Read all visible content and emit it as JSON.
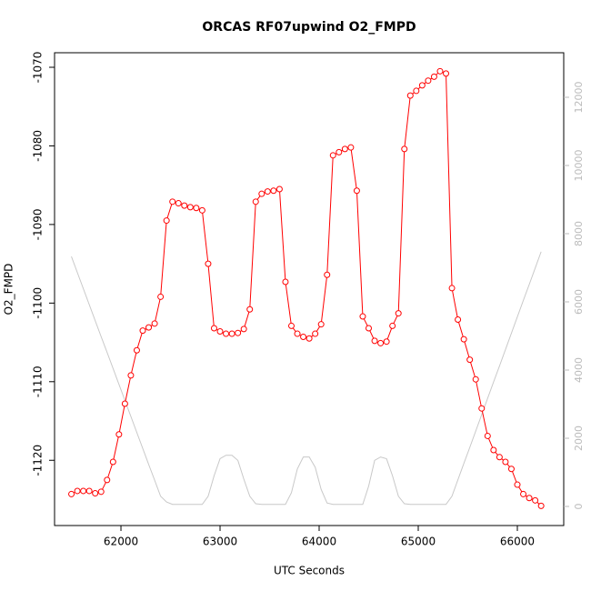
{
  "chart_data": {
    "type": "line",
    "title": "ORCAS RF07upwind O2_FMPD",
    "xlabel": "UTC Seconds",
    "ylabel": "O2_FMPD",
    "x": [
      61500,
      61560,
      61620,
      61680,
      61740,
      61800,
      61860,
      61920,
      61980,
      62040,
      62100,
      62160,
      62220,
      62280,
      62340,
      62400,
      62460,
      62520,
      62580,
      62640,
      62700,
      62760,
      62820,
      62880,
      62940,
      63000,
      63060,
      63120,
      63180,
      63240,
      63300,
      63360,
      63420,
      63480,
      63540,
      63600,
      63660,
      63720,
      63780,
      63840,
      63900,
      63960,
      64020,
      64080,
      64140,
      64200,
      64260,
      64320,
      64380,
      64440,
      64500,
      64560,
      64620,
      64680,
      64740,
      64800,
      64860,
      64920,
      64980,
      65040,
      65100,
      65160,
      65220,
      65280,
      65340,
      65400,
      65460,
      65520,
      65580,
      65640,
      65700,
      65760,
      65820,
      65880,
      65940,
      66000,
      66060,
      66120,
      66180,
      66240
    ],
    "series": [
      {
        "color": "#ff0000",
        "marker": "circle",
        "values": [
          -1124.3,
          -1123.9,
          -1123.9,
          -1123.9,
          -1124.2,
          -1124.0,
          -1122.5,
          -1120.2,
          -1116.7,
          -1112.8,
          -1109.2,
          -1106.0,
          -1103.5,
          -1103.1,
          -1102.6,
          -1099.2,
          -1089.5,
          -1087.1,
          -1087.3,
          -1087.6,
          -1087.8,
          -1087.9,
          -1088.2,
          -1095.0,
          -1103.2,
          -1103.6,
          -1103.9,
          -1103.9,
          -1103.8,
          -1103.3,
          -1100.8,
          -1087.1,
          -1086.1,
          -1085.8,
          -1085.7,
          -1085.5,
          -1097.3,
          -1102.9,
          -1103.9,
          -1104.3,
          -1104.5,
          -1103.9,
          -1102.7,
          -1096.4,
          -1081.2,
          -1080.8,
          -1080.4,
          -1080.2,
          -1085.7,
          -1101.7,
          -1103.2,
          -1104.8,
          -1105.1,
          -1104.9,
          -1102.9,
          -1101.3,
          -1080.4,
          -1073.6,
          -1073.0,
          -1072.3,
          -1071.7,
          -1071.2,
          -1070.5,
          -1070.8,
          -1098.1,
          -1102.1,
          -1104.6,
          -1107.2,
          -1109.7,
          -1113.4,
          -1116.9,
          -1118.7,
          -1119.6,
          -1120.2,
          -1121.1,
          -1123.1,
          -1124.3,
          -1124.8,
          -1125.1,
          -1125.8
        ]
      },
      {
        "color": "#c8c8c8",
        "axis": "y2",
        "values": [
          7330,
          6860,
          6390,
          5920,
          5450,
          4980,
          4520,
          4050,
          3580,
          3110,
          2640,
          2170,
          1700,
          1230,
          770,
          300,
          130,
          60,
          60,
          60,
          60,
          60,
          60,
          300,
          900,
          1400,
          1500,
          1500,
          1350,
          800,
          300,
          80,
          60,
          60,
          60,
          60,
          60,
          400,
          1100,
          1450,
          1450,
          1150,
          500,
          100,
          60,
          60,
          60,
          60,
          60,
          60,
          600,
          1350,
          1450,
          1400,
          900,
          300,
          80,
          60,
          60,
          60,
          60,
          60,
          60,
          60,
          300,
          780,
          1260,
          1730,
          2210,
          2690,
          3170,
          3650,
          4120,
          4600,
          5080,
          5560,
          6040,
          6510,
          6990,
          7470
        ]
      }
    ],
    "xlim": [
      61330,
      66468
    ],
    "xticks": [
      62000,
      63000,
      64000,
      65000,
      66000
    ],
    "ylim": [
      -1128.3,
      -1068.15
    ],
    "yticks": [
      -1120,
      -1110,
      -1100,
      -1090,
      -1080,
      -1070
    ],
    "y2lim": [
      -560,
      13307
    ],
    "y2ticks": [
      0,
      2000,
      4000,
      6000,
      8000,
      10000,
      12000
    ]
  }
}
